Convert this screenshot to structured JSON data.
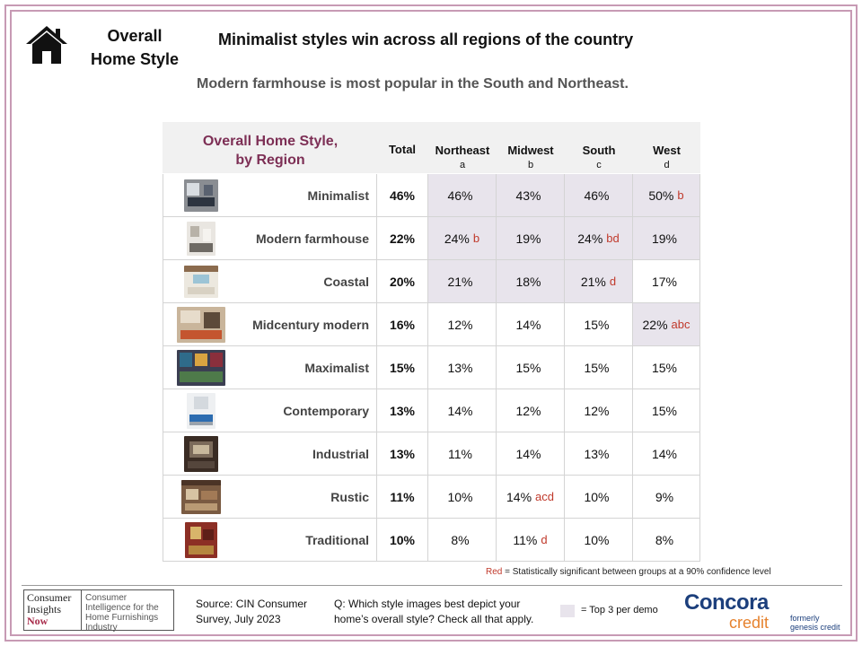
{
  "header": {
    "section_title_line1": "Overall",
    "section_title_line2": "Home Style",
    "headline": "Minimalist  styles win across  all regions of the country",
    "subhead": "Modern farmhouse is most popular in the South and Northeast."
  },
  "table": {
    "title_line1": "Overall Home Style,",
    "title_line2": "by Region",
    "columns": {
      "total": "Total",
      "northeast": "Northeast",
      "northeast_code": "a",
      "midwest": "Midwest",
      "midwest_code": "b",
      "south": "South",
      "south_code": "c",
      "west": "West",
      "west_code": "d"
    },
    "rows": [
      {
        "label": "Minimalist",
        "total": "46%",
        "ne": "46%",
        "ne_sig": "",
        "mw": "43%",
        "mw_sig": "",
        "so": "46%",
        "so_sig": "",
        "we": "50%",
        "we_sig": "b"
      },
      {
        "label": "Modern farmhouse",
        "total": "22%",
        "ne": "24%",
        "ne_sig": "b",
        "mw": "19%",
        "mw_sig": "",
        "so": "24%",
        "so_sig": "bd",
        "we": "19%",
        "we_sig": ""
      },
      {
        "label": "Coastal",
        "total": "20%",
        "ne": "21%",
        "ne_sig": "",
        "mw": "18%",
        "mw_sig": "",
        "so": "21%",
        "so_sig": "d",
        "we": "17%",
        "we_sig": ""
      },
      {
        "label": "Midcentury modern",
        "total": "16%",
        "ne": "12%",
        "ne_sig": "",
        "mw": "14%",
        "mw_sig": "",
        "so": "15%",
        "so_sig": "",
        "we": "22%",
        "we_sig": "abc"
      },
      {
        "label": "Maximalist",
        "total": "15%",
        "ne": "13%",
        "ne_sig": "",
        "mw": "15%",
        "mw_sig": "",
        "so": "15%",
        "so_sig": "",
        "we": "15%",
        "we_sig": ""
      },
      {
        "label": "Contemporary",
        "total": "13%",
        "ne": "14%",
        "ne_sig": "",
        "mw": "12%",
        "mw_sig": "",
        "so": "12%",
        "so_sig": "",
        "we": "15%",
        "we_sig": ""
      },
      {
        "label": "Industrial",
        "total": "13%",
        "ne": "11%",
        "ne_sig": "",
        "mw": "14%",
        "mw_sig": "",
        "so": "13%",
        "so_sig": "",
        "we": "14%",
        "we_sig": ""
      },
      {
        "label": "Rustic",
        "total": "11%",
        "ne": "10%",
        "ne_sig": "",
        "mw": "14%",
        "mw_sig": "acd",
        "so": "10%",
        "so_sig": "",
        "we": "9%",
        "we_sig": ""
      },
      {
        "label": "Traditional",
        "total": "10%",
        "ne": "8%",
        "ne_sig": "",
        "mw": "11%",
        "mw_sig": "d",
        "so": "10%",
        "so_sig": "",
        "we": "8%",
        "we_sig": ""
      }
    ]
  },
  "footnote": {
    "red_word": "Red",
    "text": " = Statistically significant between groups at a 90% confidence level"
  },
  "footer": {
    "cin_line1": "Consumer",
    "cin_line2": "Insights",
    "cin_line3": "Now",
    "cin_desc": "Consumer Intelligence for the Home Furnishings Industry",
    "source": "Source:  CIN Consumer Survey, July 2023",
    "question": "Q: Which style images best depict your home’s overall style? Check all that apply.",
    "legend": "= Top 3 per demo",
    "concora": "Concora",
    "concora_credit": "credit",
    "formerly_line1": "formerly",
    "formerly_line2": "genesis credit"
  },
  "colors": {
    "frame": "#c79ab4",
    "table_title": "#7d2f55",
    "highlight": "#e8e4ec",
    "significance_red": "#c0392b",
    "brand_blue": "#1c3f7c",
    "brand_orange": "#e6822e"
  },
  "icons": {
    "section_icon": "house-icon"
  }
}
